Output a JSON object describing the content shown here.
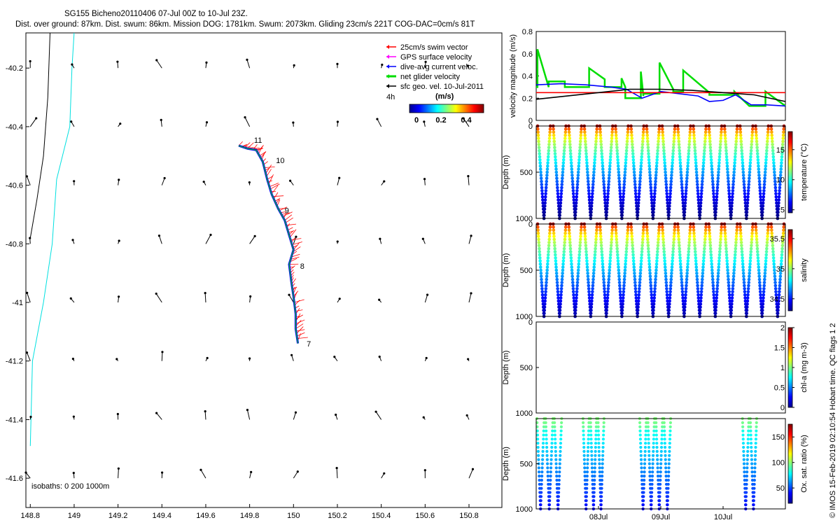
{
  "title": {
    "line1": "SG155 Bicheno20110406 07-Jul 00Z to 10-Jul 23Z.",
    "line2": "Dist. over ground: 87km. Dist. swum: 86km. Mission DOG: 1781km. Swum: 2073km. Gliding 23cm/s 221T COG-DAC=0cm/s 81T"
  },
  "legend": {
    "items": [
      {
        "label": "25cm/s swim vector",
        "color": "#ff0000"
      },
      {
        "label": "GPS surface velocity",
        "color": "#ff00ff"
      },
      {
        "label": "dive-avg current veloc.",
        "color": "#0000ff"
      },
      {
        "label": "net glider velocity",
        "color": "#00dd00"
      },
      {
        "label": "sfc geo. vel. 10-Jul-2011",
        "color": "#000000"
      }
    ],
    "interval": "4h",
    "colorbar_unit": "(m/s)",
    "colorbar_ticks": [
      "0",
      "0.2",
      "0.4"
    ]
  },
  "isobaths": "isobaths: 0   200  1000m",
  "footer": "© IMOS 15-Feb-2019 02:10:54  Hobart time. QC flags 1  2",
  "chart_data": [
    {
      "type": "scatter",
      "name": "map",
      "xlim": [
        148.78,
        150.95
      ],
      "ylim": [
        -41.7,
        -40.08
      ],
      "x_ticks": [
        "148.8",
        "149",
        "149.2",
        "149.4",
        "149.6",
        "149.8",
        "150",
        "150.2",
        "150.4",
        "150.6",
        "150.8"
      ],
      "x_tick_values": [
        148.8,
        149,
        149.2,
        149.4,
        149.6,
        149.8,
        150,
        150.2,
        150.4,
        150.6,
        150.8
      ],
      "y_ticks": [
        "-40.2",
        "-40.4",
        "-40.6",
        "-40.8",
        "-41",
        "-41.2",
        "-41.4",
        "-41.6"
      ],
      "y_tick_values": [
        -40.2,
        -40.4,
        -40.6,
        -40.8,
        -41,
        -41.2,
        -41.4,
        -41.6
      ],
      "track": [
        [
          149.75,
          -40.465
        ],
        [
          149.79,
          -40.475
        ],
        [
          149.83,
          -40.48
        ],
        [
          149.86,
          -40.52
        ],
        [
          149.88,
          -40.58
        ],
        [
          149.9,
          -40.63
        ],
        [
          149.93,
          -40.68
        ],
        [
          149.96,
          -40.72
        ],
        [
          149.98,
          -40.77
        ],
        [
          150.0,
          -40.82
        ],
        [
          149.98,
          -40.87
        ],
        [
          149.99,
          -40.93
        ],
        [
          150.0,
          -40.98
        ],
        [
          150.01,
          -41.04
        ],
        [
          150.01,
          -41.09
        ],
        [
          150.02,
          -41.14
        ]
      ],
      "day_labels": [
        {
          "label": "11",
          "lon": 149.82,
          "lat": -40.455
        },
        {
          "label": "10",
          "lon": 149.92,
          "lat": -40.525
        },
        {
          "label": "9",
          "lon": 149.96,
          "lat": -40.695
        },
        {
          "label": "8",
          "lon": 150.03,
          "lat": -40.885
        },
        {
          "label": "7",
          "lon": 150.06,
          "lat": -41.15
        }
      ],
      "coast_200m": [
        [
          148.89,
          -40.08
        ],
        [
          148.88,
          -40.3
        ],
        [
          148.86,
          -40.5
        ],
        [
          148.83,
          -40.65
        ],
        [
          148.8,
          -40.78
        ]
      ],
      "coast_1000m": [
        [
          149.0,
          -40.08
        ],
        [
          148.99,
          -40.2
        ],
        [
          148.98,
          -40.4
        ],
        [
          148.92,
          -40.58
        ],
        [
          148.9,
          -40.8
        ],
        [
          148.86,
          -41.0
        ],
        [
          148.81,
          -41.2
        ],
        [
          148.8,
          -41.49
        ]
      ]
    },
    {
      "type": "line",
      "name": "velocity",
      "ylabel": "velocity magnitude (m/s)",
      "ylim": [
        0,
        0.8
      ],
      "y_ticks": [
        0,
        0.2,
        0.4,
        0.6,
        0.8
      ],
      "x_range_days": [
        7.0,
        11.0
      ],
      "series": [
        {
          "name": "net glider velocity",
          "color": "#00dd00",
          "x": [
            7.0,
            7.02,
            7.02,
            7.2,
            7.2,
            7.46,
            7.46,
            7.85,
            7.85,
            8.1,
            8.1,
            8.37,
            8.37,
            8.43,
            8.43,
            8.68,
            8.68,
            8.72,
            8.72,
            8.98,
            8.98,
            9.2,
            9.2,
            9.36,
            9.36,
            9.78,
            9.78,
            10.18,
            10.18,
            10.42,
            10.42,
            10.68,
            10.68,
            11.0
          ],
          "y": [
            0.3,
            0.3,
            0.64,
            0.3,
            0.35,
            0.35,
            0.3,
            0.3,
            0.47,
            0.37,
            0.3,
            0.3,
            0.38,
            0.3,
            0.2,
            0.2,
            0.44,
            0.22,
            0.24,
            0.24,
            0.52,
            0.28,
            0.26,
            0.26,
            0.45,
            0.25,
            0.23,
            0.23,
            0.26,
            0.13,
            0.13,
            0.13,
            0.26,
            0.13
          ]
        },
        {
          "name": "dive-avg current",
          "color": "#0000ff",
          "x": [
            7.0,
            7.4,
            7.8,
            8.2,
            8.45,
            8.7,
            9.0,
            9.3,
            9.6,
            9.78,
            10.0,
            10.2,
            10.45,
            10.7,
            11.0
          ],
          "y": [
            0.32,
            0.33,
            0.32,
            0.3,
            0.28,
            0.2,
            0.26,
            0.24,
            0.22,
            0.17,
            0.18,
            0.23,
            0.14,
            0.14,
            0.13
          ]
        },
        {
          "name": "reference",
          "color": "#ff0000",
          "x": [
            7.0,
            11.0
          ],
          "y": [
            0.25,
            0.25
          ]
        },
        {
          "name": "surface geostrophic",
          "color": "#000000",
          "x": [
            7.0,
            7.5,
            8.0,
            8.5,
            9.0,
            9.5,
            10.0,
            10.5,
            11.0
          ],
          "y": [
            0.19,
            0.22,
            0.25,
            0.28,
            0.28,
            0.27,
            0.25,
            0.23,
            0.17
          ]
        }
      ]
    },
    {
      "type": "scatter",
      "name": "temperature",
      "ylabel": "Depth (m)",
      "cbar_label": "temperature (°C)",
      "ylim": [
        1000,
        0
      ],
      "y_ticks": [
        "0",
        "500",
        "1000"
      ],
      "y_tick_values": [
        0,
        500,
        1000
      ],
      "clim": [
        4.5,
        18
      ],
      "cbar_ticks": [
        "5",
        "10",
        "15"
      ],
      "cbar_tick_values": [
        5,
        10,
        15
      ],
      "surface": 17.5,
      "deep": 4.5,
      "profiles": 16,
      "max_depth": 1000
    },
    {
      "type": "scatter",
      "name": "salinity",
      "ylabel": "Depth (m)",
      "cbar_label": "salinity",
      "ylim": [
        1000,
        0
      ],
      "y_ticks": [
        "0",
        "500",
        "1000"
      ],
      "y_tick_values": [
        0,
        500,
        1000
      ],
      "clim": [
        34.3,
        35.65
      ],
      "cbar_ticks": [
        "34.5",
        "35",
        "35.5"
      ],
      "cbar_tick_values": [
        34.5,
        35,
        35.5
      ],
      "surface": 35.6,
      "deep": 34.35,
      "profiles": 16,
      "max_depth": 1000
    },
    {
      "type": "scatter",
      "name": "chla",
      "ylabel": "Depth (m)",
      "cbar_label": "chl-a (mg m-3)",
      "ylim": [
        1000,
        0
      ],
      "y_ticks": [
        "0",
        "500",
        "1000"
      ],
      "y_tick_values": [
        0,
        500,
        1000
      ],
      "clim": [
        0,
        2
      ],
      "cbar_ticks": [
        "0",
        "0.5",
        "1",
        "1.5",
        "2"
      ],
      "cbar_tick_values": [
        0,
        0.5,
        1,
        1.5,
        2
      ],
      "profiles": 0
    },
    {
      "type": "scatter",
      "name": "oxygen",
      "ylabel": "Depth (m)",
      "cbar_label": "Ox. sat. ratio (%)",
      "ylim": [
        1000,
        0
      ],
      "y_ticks": [
        "500",
        "1000"
      ],
      "y_tick_values": [
        500,
        1000
      ],
      "clim": [
        20,
        175
      ],
      "cbar_ticks": [
        "50",
        "100",
        "150"
      ],
      "cbar_tick_values": [
        50,
        100,
        150
      ],
      "surface": 88,
      "deep": 40,
      "max_depth": 1000,
      "groups": [
        [
          0.0,
          0.42
        ],
        [
          0.74,
          1.1
        ],
        [
          1.65,
          2.17
        ],
        [
          3.3,
          3.55
        ]
      ],
      "x_ticks": [
        "08Jul",
        "09Jul",
        "10Jul"
      ],
      "x_tick_days": [
        8,
        9,
        10
      ]
    }
  ]
}
